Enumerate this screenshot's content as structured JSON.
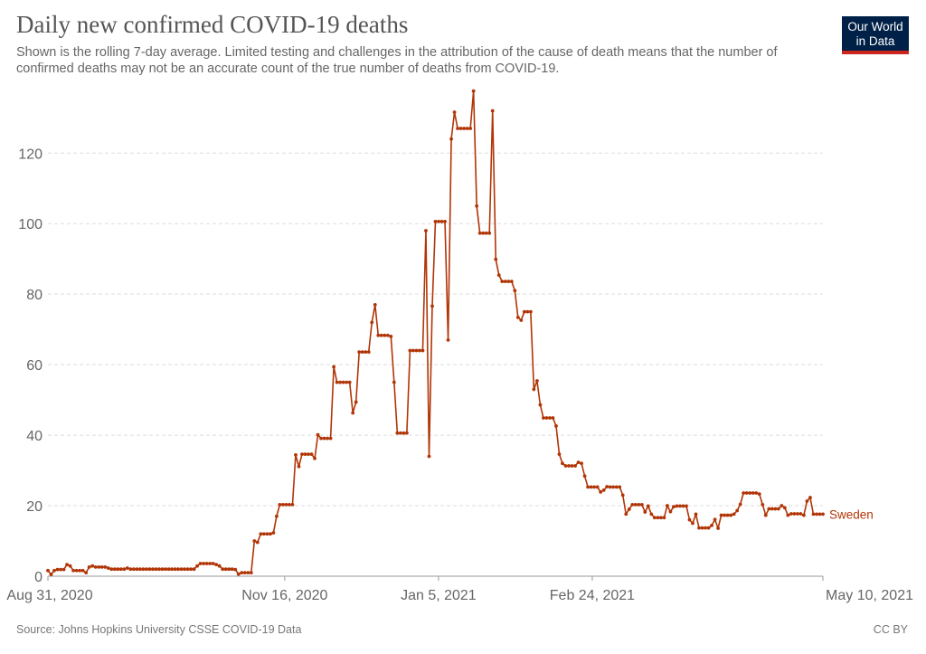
{
  "header": {
    "title": "Daily new confirmed COVID-19 deaths",
    "subtitle": "Shown is the rolling 7-day average. Limited testing and challenges in the attribution of the cause of death means that the number of confirmed deaths may not be an accurate count of the true number of deaths from COVID-19."
  },
  "logo": {
    "line1": "Our World",
    "line2": "in Data",
    "bg_color": "#002147",
    "accent_color": "#ce261e"
  },
  "footer": {
    "source": "Source: Johns Hopkins University CSSE COVID-19 Data",
    "license": "CC BY"
  },
  "chart_data": {
    "type": "line",
    "title": "Daily new confirmed COVID-19 deaths",
    "xlabel": "",
    "ylabel": "",
    "x_start": "2020-08-31",
    "x_end": "2021-05-10",
    "xlim": [
      "2020-08-31",
      "2021-05-10"
    ],
    "ylim": [
      0,
      137
    ],
    "yticks": [
      0,
      20,
      40,
      60,
      80,
      100,
      120
    ],
    "xtick_labels": [
      "Aug 31, 2020",
      "Nov 16, 2020",
      "Jan 5, 2021",
      "Feb 24, 2021",
      "May 10, 2021"
    ],
    "xtick_dates": [
      "2020-08-31",
      "2020-11-16",
      "2021-01-05",
      "2021-02-24",
      "2021-05-10"
    ],
    "grid": "horizontal dashed",
    "line_color": "#b13507",
    "series": [
      {
        "name": "Sweden",
        "values": [
          1.6,
          0.5,
          1.6,
          1.9,
          1.9,
          1.9,
          3.3,
          2.9,
          1.6,
          1.6,
          1.6,
          1.6,
          1.0,
          2.6,
          2.9,
          2.6,
          2.6,
          2.6,
          2.6,
          2.3,
          2.0,
          2.0,
          2.0,
          2.0,
          2.0,
          2.3,
          2.0,
          2.0,
          2.0,
          2.0,
          2.0,
          2.0,
          2.0,
          2.0,
          2.0,
          2.0,
          2.0,
          2.0,
          2.0,
          2.0,
          2.0,
          2.0,
          2.0,
          2.0,
          2.0,
          2.0,
          2.0,
          2.9,
          3.6,
          3.6,
          3.6,
          3.6,
          3.6,
          3.3,
          2.9,
          2.0,
          2.0,
          2.0,
          2.0,
          1.9,
          0.6,
          1.0,
          1.0,
          1.0,
          1.0,
          10.0,
          9.6,
          12.0,
          12.0,
          12.0,
          12.0,
          12.3,
          17.0,
          20.3,
          20.3,
          20.3,
          20.3,
          20.3,
          34.4,
          31.1,
          34.6,
          34.6,
          34.6,
          34.6,
          33.4,
          40.1,
          39.1,
          39.1,
          39.1,
          39.1,
          59.4,
          55.0,
          55.0,
          55.0,
          55.0,
          55.0,
          46.3,
          49.4,
          63.6,
          63.6,
          63.6,
          63.6,
          72.0,
          77.0,
          68.3,
          68.3,
          68.3,
          68.3,
          68.0,
          55.0,
          40.6,
          40.6,
          40.6,
          40.6,
          64.0,
          64.0,
          64.0,
          64.0,
          64.0,
          98.0,
          34.0,
          76.6,
          100.6,
          100.6,
          100.6,
          100.6,
          67.0,
          124.0,
          131.6,
          127.0,
          127.0,
          127.0,
          127.0,
          127.0,
          137.6,
          105.0,
          97.3,
          97.3,
          97.3,
          97.3,
          132.0,
          89.9,
          85.4,
          83.6,
          83.6,
          83.6,
          83.6,
          81.0,
          73.4,
          72.6,
          75.0,
          75.0,
          75.0,
          53.0,
          55.4,
          48.6,
          44.9,
          44.9,
          44.9,
          44.9,
          42.6,
          34.6,
          32.0,
          31.3,
          31.3,
          31.3,
          31.3,
          32.3,
          32.0,
          28.4,
          25.3,
          25.3,
          25.3,
          25.3,
          23.9,
          24.4,
          25.4,
          25.3,
          25.3,
          25.3,
          25.3,
          23.0,
          17.6,
          19.0,
          20.3,
          20.3,
          20.3,
          20.3,
          18.2,
          19.9,
          17.6,
          16.6,
          16.6,
          16.6,
          16.6,
          20.0,
          18.3,
          19.7,
          19.9,
          19.9,
          19.9,
          19.9,
          16.0,
          15.0,
          17.6,
          13.7,
          13.7,
          13.7,
          13.7,
          14.4,
          16.1,
          13.6,
          17.3,
          17.3,
          17.3,
          17.3,
          17.6,
          18.6,
          20.4,
          23.6,
          23.6,
          23.6,
          23.6,
          23.6,
          23.3,
          20.3,
          17.3,
          19.1,
          19.1,
          19.1,
          19.1,
          20.0,
          19.4,
          17.3,
          17.7,
          17.7,
          17.7,
          17.7,
          17.3,
          21.3,
          22.3,
          17.6,
          17.6,
          17.6,
          17.6
        ]
      }
    ]
  }
}
